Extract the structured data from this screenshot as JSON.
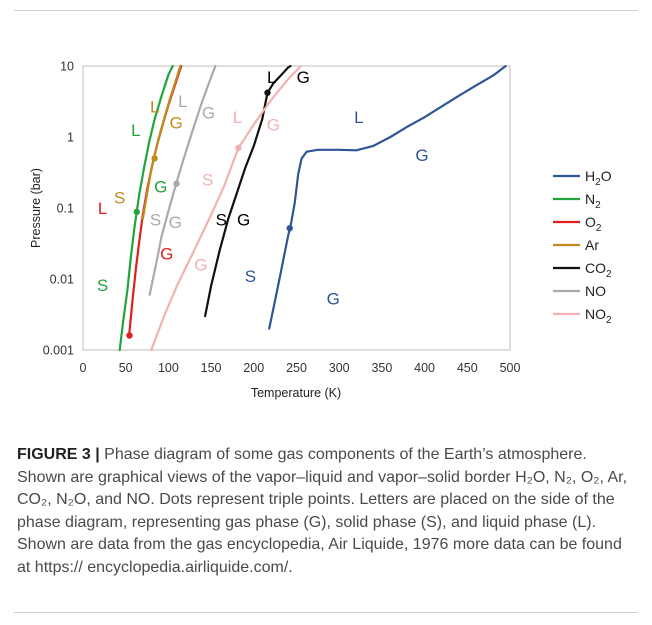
{
  "chart_data": {
    "type": "line",
    "xlabel": "Temperature (K)",
    "ylabel": "Pressure (bar)",
    "xlim": [
      0,
      500
    ],
    "ylim": [
      0.001,
      10
    ],
    "yscale": "log",
    "x_ticks": [
      "0",
      "50",
      "100",
      "150",
      "200",
      "250",
      "300",
      "350",
      "400",
      "450",
      "500"
    ],
    "y_ticks": [
      "0.001",
      "0.01",
      "0.1",
      "1",
      "10"
    ],
    "legend_position": "right",
    "grid": false,
    "series": [
      {
        "name": "H2O",
        "label_main": "H",
        "label_sub": "2",
        "label_post": "O",
        "color": "#2f5597",
        "points": [
          [
            218,
            0.002
          ],
          [
            225,
            0.005
          ],
          [
            232,
            0.013
          ],
          [
            240,
            0.04
          ],
          [
            243,
            0.055
          ],
          [
            248,
            0.12
          ],
          [
            252,
            0.3
          ],
          [
            256,
            0.5
          ],
          [
            262,
            0.62
          ],
          [
            275,
            0.66
          ],
          [
            300,
            0.66
          ],
          [
            320,
            0.65
          ],
          [
            340,
            0.75
          ],
          [
            360,
            1.0
          ],
          [
            380,
            1.4
          ],
          [
            400,
            1.9
          ],
          [
            420,
            2.7
          ],
          [
            440,
            3.8
          ],
          [
            460,
            5.3
          ],
          [
            480,
            7.3
          ],
          [
            495,
            10
          ]
        ],
        "triple_point": [
          242,
          0.052
        ]
      },
      {
        "name": "N2",
        "label_main": "N",
        "label_sub": "2",
        "label_post": "",
        "color": "#22a33c",
        "points": [
          [
            43,
            0.001
          ],
          [
            47,
            0.0025
          ],
          [
            52,
            0.007
          ],
          [
            56,
            0.02
          ],
          [
            60,
            0.05
          ],
          [
            63,
            0.09
          ],
          [
            66,
            0.16
          ],
          [
            72,
            0.4
          ],
          [
            78,
            0.9
          ],
          [
            84,
            1.8
          ],
          [
            92,
            3.8
          ],
          [
            100,
            7.5
          ],
          [
            105,
            10
          ]
        ],
        "triple_point": [
          63,
          0.088
        ]
      },
      {
        "name": "O2",
        "label_main": "O",
        "label_sub": "2",
        "label_post": "",
        "color": "#e01f1f",
        "points": [
          [
            54,
            0.0016
          ],
          [
            58,
            0.005
          ],
          [
            62,
            0.014
          ],
          [
            66,
            0.035
          ],
          [
            70,
            0.08
          ],
          [
            75,
            0.18
          ],
          [
            80,
            0.35
          ],
          [
            87,
            0.8
          ],
          [
            94,
            1.6
          ],
          [
            100,
            2.8
          ],
          [
            108,
            5.5
          ],
          [
            115,
            10
          ]
        ],
        "triple_point": [
          54.4,
          0.0016
        ]
      },
      {
        "name": "Ar",
        "label_main": "Ar",
        "label_sub": "",
        "label_post": "",
        "color": "#c08a1e",
        "points": [
          [
            70,
            0.07
          ],
          [
            75,
            0.16
          ],
          [
            79,
            0.3
          ],
          [
            83,
            0.5
          ],
          [
            88,
            0.9
          ],
          [
            95,
            1.8
          ],
          [
            102,
            3.5
          ],
          [
            110,
            7
          ],
          [
            114,
            10
          ]
        ],
        "triple_point": [
          83.8,
          0.5
        ]
      },
      {
        "name": "CO2",
        "label_main": "CO",
        "label_sub": "2",
        "label_post": "",
        "color": "#111111",
        "points": [
          [
            143,
            0.003
          ],
          [
            150,
            0.008
          ],
          [
            160,
            0.025
          ],
          [
            170,
            0.07
          ],
          [
            180,
            0.16
          ],
          [
            190,
            0.37
          ],
          [
            200,
            0.75
          ],
          [
            210,
            1.8
          ],
          [
            216,
            4.2
          ],
          [
            223,
            5.7
          ],
          [
            230,
            7
          ],
          [
            240,
            9.5
          ],
          [
            243,
            10
          ]
        ],
        "triple_point": [
          216,
          4.2
        ]
      },
      {
        "name": "NO",
        "label_main": "NO",
        "label_sub": "",
        "label_post": "",
        "color": "#aaaaaa",
        "points": [
          [
            78,
            0.006
          ],
          [
            85,
            0.015
          ],
          [
            92,
            0.04
          ],
          [
            100,
            0.09
          ],
          [
            109,
            0.22
          ],
          [
            118,
            0.5
          ],
          [
            128,
            1.2
          ],
          [
            138,
            2.8
          ],
          [
            148,
            6
          ],
          [
            155,
            10
          ]
        ],
        "triple_point": [
          109.5,
          0.22
        ]
      },
      {
        "name": "NO2",
        "label_main": "NO",
        "label_sub": "2",
        "label_post": "",
        "color": "#f4b1b1",
        "points": [
          [
            80,
            0.001
          ],
          [
            95,
            0.003
          ],
          [
            110,
            0.008
          ],
          [
            130,
            0.025
          ],
          [
            150,
            0.08
          ],
          [
            165,
            0.2
          ],
          [
            182,
            0.7
          ],
          [
            200,
            1.5
          ],
          [
            220,
            3.3
          ],
          [
            240,
            6.5
          ],
          [
            255,
            10
          ]
        ],
        "triple_point": [
          182,
          0.7
        ]
      }
    ],
    "region_labels": [
      {
        "text": "L",
        "color": "#000000",
        "t": 221,
        "p": 7.0
      },
      {
        "text": "G",
        "color": "#000000",
        "t": 258,
        "p": 7.0
      },
      {
        "text": "L",
        "color": "#c08a1e",
        "t": 84,
        "p": 2.7
      },
      {
        "text": "L",
        "color": "#aaaaaa",
        "t": 117,
        "p": 3.2
      },
      {
        "text": "G",
        "color": "#aaaaaa",
        "t": 147,
        "p": 2.2
      },
      {
        "text": "L",
        "color": "#22a33c",
        "t": 62,
        "p": 1.25
      },
      {
        "text": "G",
        "color": "#c08a1e",
        "t": 109,
        "p": 1.6
      },
      {
        "text": "L",
        "color": "#f4b1b1",
        "t": 181,
        "p": 1.9
      },
      {
        "text": "G",
        "color": "#f4b1b1",
        "t": 223,
        "p": 1.5
      },
      {
        "text": "L",
        "color": "#2f5597",
        "t": 323,
        "p": 1.9
      },
      {
        "text": "G",
        "color": "#2f5597",
        "t": 397,
        "p": 0.56
      },
      {
        "text": "S",
        "color": "#f4b1b1",
        "t": 146,
        "p": 0.25
      },
      {
        "text": "G",
        "color": "#22a33c",
        "t": 91,
        "p": 0.2
      },
      {
        "text": "S",
        "color": "#c08a1e",
        "t": 43,
        "p": 0.14
      },
      {
        "text": "L",
        "color": "#e01f1f",
        "t": 23,
        "p": 0.1
      },
      {
        "text": "S",
        "color": "#aaaaaa",
        "t": 85,
        "p": 0.069
      },
      {
        "text": "G",
        "color": "#aaaaaa",
        "t": 108,
        "p": 0.064
      },
      {
        "text": "S",
        "color": "#000000",
        "t": 162,
        "p": 0.069
      },
      {
        "text": "G",
        "color": "#000000",
        "t": 188,
        "p": 0.069
      },
      {
        "text": "G",
        "color": "#e01f1f",
        "t": 98,
        "p": 0.023
      },
      {
        "text": "G",
        "color": "#f4b1b1",
        "t": 138,
        "p": 0.016
      },
      {
        "text": "S",
        "color": "#2f5597",
        "t": 196,
        "p": 0.011
      },
      {
        "text": "S",
        "color": "#22a33c",
        "t": 23,
        "p": 0.0082
      },
      {
        "text": "G",
        "color": "#2f5597",
        "t": 293,
        "p": 0.0053
      }
    ]
  },
  "caption": {
    "figure_label": "FIGURE 3 |",
    "text": " Phase diagram of some gas components of the Earth’s atmosphere. Shown are graphical views of the vapor–liquid and vapor–solid border H₂O, N₂, O₂, Ar, CO₂, N₂O, and NO. Dots represent triple points. Letters are placed on the side of the phase diagram, representing gas phase (G), solid phase (S), and liquid phase (L). Shown are data from the gas encyclopedia, Air Liquide, 1976 more data can be found at https:// encyclopedia.airliquide.com/."
  }
}
